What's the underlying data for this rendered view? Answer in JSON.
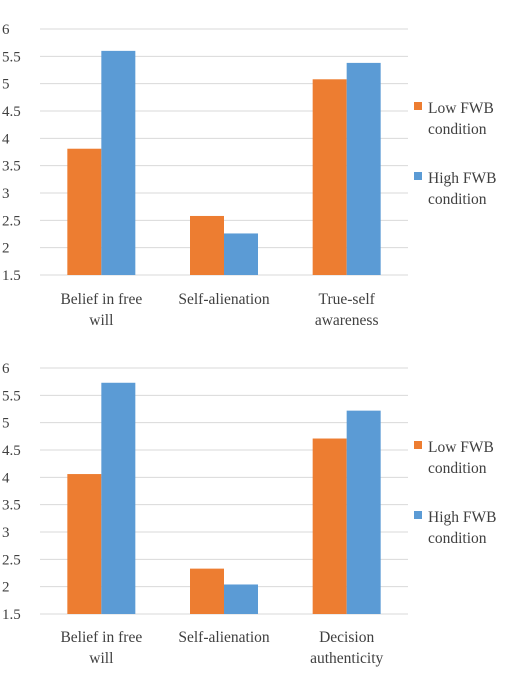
{
  "chart_data": [
    {
      "type": "bar",
      "categories": [
        [
          "Belief in free",
          "will"
        ],
        [
          "Self-alienation"
        ],
        [
          "True-self",
          "awareness"
        ]
      ],
      "series": [
        {
          "name": [
            "Low FWB",
            "condition"
          ],
          "values": [
            3.81,
            2.58,
            5.08
          ],
          "color": "#ED7D31"
        },
        {
          "name": [
            "High FWB",
            "condition"
          ],
          "values": [
            5.6,
            2.26,
            5.38
          ],
          "color": "#5B9BD5"
        }
      ],
      "yticks": [
        "1.5",
        "2",
        "2.5",
        "3",
        "3.5",
        "4",
        "4.5",
        "5",
        "5.5",
        "6"
      ],
      "ylim": [
        1.5,
        6
      ],
      "grid": true,
      "legend": "right"
    },
    {
      "type": "bar",
      "categories": [
        [
          "Belief in free",
          "will"
        ],
        [
          "Self-alienation"
        ],
        [
          "Decision",
          "authenticity"
        ]
      ],
      "series": [
        {
          "name": [
            "Low FWB",
            "condition"
          ],
          "values": [
            4.06,
            2.33,
            4.71
          ],
          "color": "#ED7D31"
        },
        {
          "name": [
            "High FWB",
            "condition"
          ],
          "values": [
            5.73,
            2.04,
            5.22
          ],
          "color": "#5B9BD5"
        }
      ],
      "yticks": [
        "1.5",
        "2",
        "2.5",
        "3",
        "3.5",
        "4",
        "4.5",
        "5",
        "5.5",
        "6"
      ],
      "ylim": [
        1.5,
        6
      ],
      "grid": true,
      "legend": "right"
    }
  ]
}
